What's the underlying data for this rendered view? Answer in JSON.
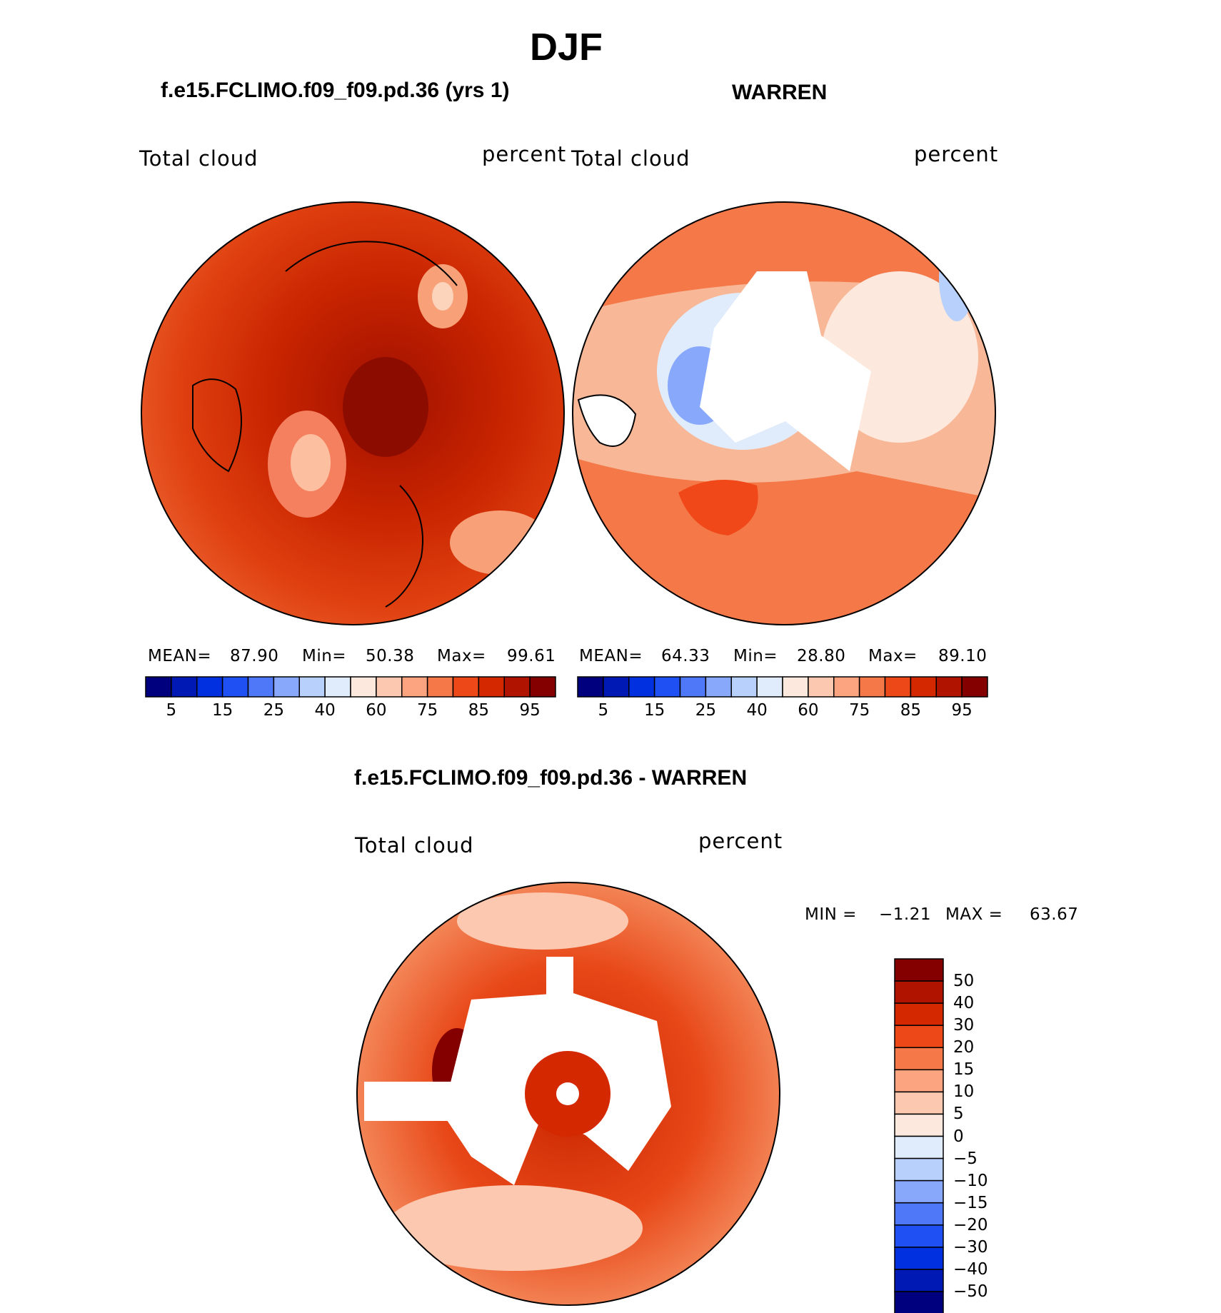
{
  "figure": {
    "season": "DJF"
  },
  "panels": [
    {
      "id": "model",
      "title": "f.e15.FCLIMO.f09_f09.pd.36 (yrs 1)",
      "left_label": "Total cloud",
      "right_label": "percent",
      "stats": {
        "mean_label": "MEAN=",
        "mean": "87.90",
        "min_label": "Min=",
        "min": "50.38",
        "max_label": "Max=",
        "max": "99.61"
      }
    },
    {
      "id": "obs",
      "title": "WARREN",
      "left_label": "Total cloud",
      "right_label": "percent",
      "stats": {
        "mean_label": "MEAN=",
        "mean": "64.33",
        "min_label": "Min=",
        "min": "28.80",
        "max_label": "Max=",
        "max": "89.10"
      }
    }
  ],
  "diff_panel": {
    "title": "f.e15.FCLIMO.f09_f09.pd.36 - WARREN",
    "left_label": "Total cloud",
    "right_label": "percent",
    "minmax": {
      "min_label": "MIN =",
      "min": "−1.21",
      "max_label": "MAX =",
      "max": "63.67"
    }
  },
  "colorbar_horizontal": {
    "colors": [
      "#00007f",
      "#0018b4",
      "#0030e0",
      "#1e50f4",
      "#4e78f8",
      "#88a8fc",
      "#b8d0fc",
      "#e0ecfc",
      "#fce8dc",
      "#fcc8b0",
      "#fca480",
      "#f47848",
      "#ec4818",
      "#d42800",
      "#b01400",
      "#840000"
    ],
    "labels": [
      "5",
      "15",
      "25",
      "40",
      "60",
      "75",
      "85",
      "95"
    ]
  },
  "colorbar_vertical": {
    "colors_top_to_bottom": [
      "#840000",
      "#b01400",
      "#d42800",
      "#ec4818",
      "#f47848",
      "#fca480",
      "#fcc8b0",
      "#fce8dc",
      "#e0ecfc",
      "#b8d0fc",
      "#88a8fc",
      "#4e78f8",
      "#1e50f4",
      "#0030e0",
      "#0018b4",
      "#00007f"
    ],
    "labels_top_to_bottom": [
      "50",
      "40",
      "30",
      "20",
      "15",
      "10",
      "5",
      "0",
      "−5",
      "−10",
      "−15",
      "−20",
      "−30",
      "−40",
      "−50"
    ]
  }
}
